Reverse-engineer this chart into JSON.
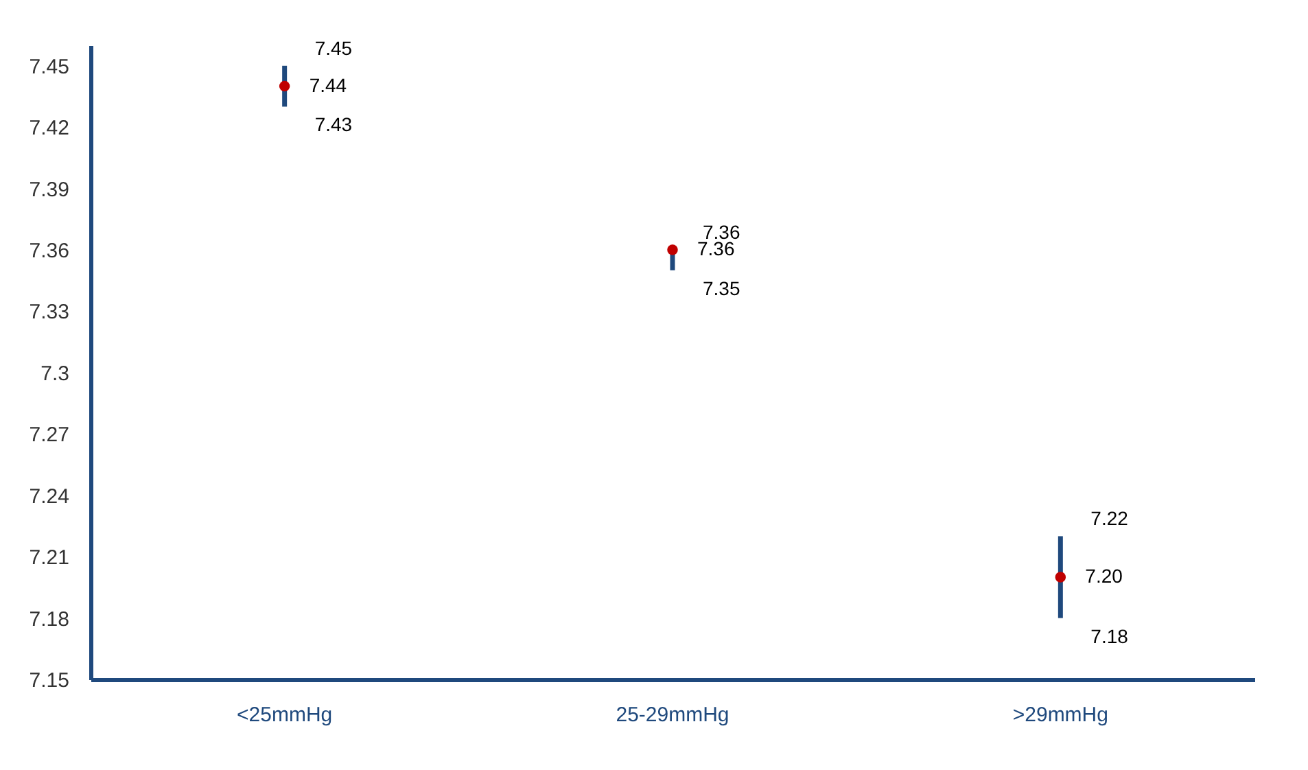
{
  "chart_data": {
    "type": "scatter",
    "categories": [
      "<25mmHg",
      "25-29mmHg",
      ">29mmHg"
    ],
    "values": [
      7.44,
      7.36,
      7.2
    ],
    "errors": [
      [
        7.43,
        7.45
      ],
      [
        7.35,
        7.36
      ],
      [
        7.18,
        7.22
      ]
    ],
    "value_labels": [
      "7.44",
      "7.36",
      "7.20"
    ],
    "color": "#c00000",
    "marker": "circle",
    "grid": false,
    "ylim": [
      7.15,
      7.46
    ],
    "yticks": [
      7.15,
      7.18,
      7.21,
      7.24,
      7.27,
      7.3,
      7.33,
      7.36,
      7.39,
      7.42,
      7.45
    ],
    "annotations": [
      {
        "text": "7.45",
        "x": "<25mmHg",
        "y": 7.45
      },
      {
        "text": "7.43",
        "x": "<25mmHg",
        "y": 7.43
      },
      {
        "text": "7.36",
        "x": "25-29mmHg",
        "y": 7.36
      },
      {
        "text": "7.35",
        "x": "25-29mmHg",
        "y": 7.35
      },
      {
        "text": "7.22",
        "x": ">29mmHg",
        "y": 7.22
      },
      {
        "text": "7.18",
        "x": ">29mmHg",
        "y": 7.18
      }
    ]
  }
}
